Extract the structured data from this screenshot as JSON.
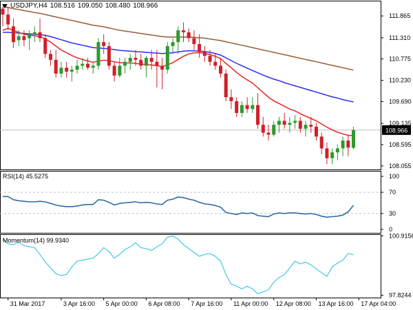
{
  "header": {
    "symbol": "USDJPY,H4",
    "ohlc": [
      "108.516",
      "109.050",
      "108.480",
      "108.966"
    ]
  },
  "price_badge": "108.966",
  "colors": {
    "up": "#2e9a2e",
    "down": "#d0202a",
    "ma_fast": "#e82424",
    "ma_mid": "#2a2aff",
    "ma_slow": "#9a5a34",
    "rsi": "#2f6aa0",
    "momentum": "#3fc8e8",
    "grid": "#bdbdbd",
    "badge": "#000000"
  },
  "rsi_panel": {
    "label": "RSI(14) 45.5275"
  },
  "momentum_panel": {
    "label": "Momentum(14) 99.9340"
  },
  "chart_data": [
    {
      "type": "candlestick",
      "name": "USDJPY,H4",
      "yaxis_ticks": [
        111.865,
        111.31,
        110.775,
        110.23,
        109.69,
        109.135,
        108.595,
        108.055
      ],
      "ylim": [
        108.0,
        112.2
      ],
      "current_price": 108.966,
      "xaxis_ticks": [
        "31 Mar 2017",
        "3 Apr 16:00",
        "5 Apr 00:00",
        "6 Apr 08:00",
        "7 Apr 16:00",
        "11 Apr 00:00",
        "12 Apr 08:00",
        "13 Apr 16:00",
        "17 Apr 04:00"
      ],
      "xaxis_tick_bars": [
        1,
        11,
        19,
        27,
        35,
        43,
        51,
        59,
        67
      ],
      "candles": [
        [
          112.05,
          112.1,
          111.6,
          111.9
        ],
        [
          111.9,
          112.1,
          111.5,
          111.65
        ],
        [
          111.6,
          111.8,
          111.05,
          111.2
        ],
        [
          111.25,
          111.5,
          111.1,
          111.35
        ],
        [
          111.35,
          111.5,
          111.1,
          111.25
        ],
        [
          111.3,
          111.5,
          111.0,
          111.4
        ],
        [
          111.4,
          111.6,
          111.2,
          111.45
        ],
        [
          111.45,
          111.8,
          111.2,
          111.3
        ],
        [
          111.3,
          111.4,
          110.8,
          110.9
        ],
        [
          110.9,
          111.0,
          110.6,
          110.75
        ],
        [
          110.75,
          111.0,
          110.3,
          110.4
        ],
        [
          110.4,
          110.7,
          110.3,
          110.55
        ],
        [
          110.55,
          110.7,
          110.3,
          110.45
        ],
        [
          110.45,
          110.6,
          110.2,
          110.5
        ],
        [
          110.5,
          110.75,
          110.4,
          110.6
        ],
        [
          110.6,
          110.8,
          110.5,
          110.65
        ],
        [
          110.65,
          110.8,
          110.5,
          110.55
        ],
        [
          110.55,
          110.7,
          110.4,
          110.6
        ],
        [
          110.6,
          111.3,
          110.5,
          111.2
        ],
        [
          111.2,
          111.4,
          110.9,
          111.1
        ],
        [
          111.1,
          111.2,
          110.5,
          110.6
        ],
        [
          110.6,
          110.7,
          110.2,
          110.35
        ],
        [
          110.35,
          110.8,
          110.3,
          110.6
        ],
        [
          110.6,
          110.8,
          110.4,
          110.7
        ],
        [
          110.7,
          110.9,
          110.5,
          110.8
        ],
        [
          110.8,
          111.0,
          110.6,
          110.75
        ],
        [
          110.75,
          110.9,
          110.5,
          110.6
        ],
        [
          110.6,
          110.85,
          110.3,
          110.8
        ],
        [
          110.8,
          111.0,
          110.5,
          110.7
        ],
        [
          110.7,
          111.0,
          110.05,
          110.6
        ],
        [
          110.6,
          110.8,
          110.0,
          110.5
        ],
        [
          110.5,
          111.2,
          110.4,
          111.1
        ],
        [
          111.1,
          111.3,
          110.9,
          111.2
        ],
        [
          111.2,
          111.6,
          110.9,
          111.5
        ],
        [
          111.5,
          111.7,
          111.2,
          111.45
        ],
        [
          111.45,
          111.55,
          111.2,
          111.3
        ],
        [
          111.3,
          111.5,
          111.0,
          111.15
        ],
        [
          111.15,
          111.4,
          110.8,
          110.95
        ],
        [
          110.95,
          111.1,
          110.7,
          110.85
        ],
        [
          110.85,
          111.0,
          110.6,
          110.7
        ],
        [
          110.7,
          110.9,
          110.5,
          110.6
        ],
        [
          110.6,
          110.8,
          110.3,
          110.4
        ],
        [
          110.4,
          110.5,
          109.7,
          109.8
        ],
        [
          109.8,
          110.0,
          109.5,
          109.7
        ],
        [
          109.7,
          109.8,
          109.3,
          109.4
        ],
        [
          109.4,
          109.7,
          109.3,
          109.6
        ],
        [
          109.6,
          109.8,
          109.4,
          109.5
        ],
        [
          109.5,
          109.8,
          109.4,
          109.6
        ],
        [
          109.6,
          109.9,
          109.0,
          109.1
        ],
        [
          109.1,
          109.3,
          108.8,
          108.9
        ],
        [
          108.9,
          109.1,
          108.7,
          108.85
        ],
        [
          108.85,
          109.2,
          108.8,
          109.1
        ],
        [
          109.1,
          109.3,
          108.9,
          109.2
        ],
        [
          109.2,
          109.4,
          109.0,
          109.1
        ],
        [
          109.1,
          109.3,
          108.9,
          109.15
        ],
        [
          109.15,
          109.35,
          109.0,
          109.2
        ],
        [
          109.2,
          109.3,
          108.9,
          109.0
        ],
        [
          109.0,
          109.2,
          108.8,
          109.1
        ],
        [
          109.1,
          109.3,
          108.9,
          109.05
        ],
        [
          109.05,
          109.15,
          108.7,
          108.8
        ],
        [
          108.8,
          108.9,
          108.35,
          108.5
        ],
        [
          108.5,
          108.65,
          108.1,
          108.25
        ],
        [
          108.25,
          108.5,
          108.1,
          108.4
        ],
        [
          108.4,
          108.6,
          108.2,
          108.5
        ],
        [
          108.5,
          108.8,
          108.3,
          108.7
        ],
        [
          108.7,
          108.85,
          108.3,
          108.52
        ],
        [
          108.516,
          109.05,
          108.48,
          108.966
        ]
      ],
      "ma_fast": [
        111.5,
        111.55,
        111.5,
        111.45,
        111.4,
        111.38,
        111.36,
        111.34,
        111.28,
        111.2,
        111.1,
        111.0,
        110.93,
        110.86,
        110.8,
        110.76,
        110.72,
        110.69,
        110.72,
        110.74,
        110.73,
        110.7,
        110.68,
        110.67,
        110.67,
        110.66,
        110.64,
        110.63,
        110.62,
        110.6,
        110.58,
        110.62,
        110.68,
        110.76,
        110.84,
        110.9,
        110.93,
        110.93,
        110.92,
        110.88,
        110.84,
        110.78,
        110.66,
        110.55,
        110.43,
        110.33,
        110.24,
        110.16,
        110.04,
        109.92,
        109.8,
        109.71,
        109.64,
        109.57,
        109.5,
        109.45,
        109.38,
        109.32,
        109.26,
        109.2,
        109.12,
        109.04,
        108.97,
        108.91,
        108.87,
        108.83,
        108.83
      ],
      "ma_mid": [
        111.45,
        111.45,
        111.44,
        111.43,
        111.42,
        111.41,
        111.4,
        111.39,
        111.37,
        111.34,
        111.3,
        111.26,
        111.22,
        111.18,
        111.15,
        111.12,
        111.09,
        111.06,
        111.05,
        111.04,
        111.03,
        111.01,
        110.99,
        110.98,
        110.97,
        110.96,
        110.95,
        110.94,
        110.93,
        110.92,
        110.91,
        110.92,
        110.93,
        110.95,
        110.97,
        110.98,
        110.98,
        110.97,
        110.96,
        110.94,
        110.91,
        110.87,
        110.8,
        110.73,
        110.66,
        110.6,
        110.54,
        110.48,
        110.42,
        110.36,
        110.31,
        110.26,
        110.22,
        110.17,
        110.13,
        110.09,
        110.05,
        110.01,
        109.97,
        109.93,
        109.89,
        109.85,
        109.81,
        109.78,
        109.74,
        109.71,
        109.68
      ],
      "ma_slow": [
        112.1,
        112.08,
        112.05,
        112.03,
        112.0,
        111.98,
        111.95,
        111.93,
        111.9,
        111.87,
        111.84,
        111.81,
        111.78,
        111.75,
        111.72,
        111.69,
        111.66,
        111.63,
        111.61,
        111.59,
        111.56,
        111.53,
        111.5,
        111.48,
        111.46,
        111.44,
        111.42,
        111.4,
        111.38,
        111.36,
        111.34,
        111.33,
        111.33,
        111.33,
        111.33,
        111.33,
        111.32,
        111.31,
        111.3,
        111.28,
        111.26,
        111.24,
        111.21,
        111.18,
        111.15,
        111.12,
        111.09,
        111.06,
        111.03,
        111.0,
        110.97,
        110.94,
        110.91,
        110.88,
        110.85,
        110.82,
        110.79,
        110.76,
        110.73,
        110.7,
        110.67,
        110.64,
        110.61,
        110.58,
        110.55,
        110.52,
        110.49
      ]
    },
    {
      "type": "line",
      "name": "RSI(14) 45.5275",
      "yaxis_ticks": [
        100,
        70,
        30,
        0
      ],
      "ylim": [
        0,
        100
      ],
      "levels": [
        70,
        30
      ],
      "values": [
        62,
        62,
        56,
        54,
        53,
        52,
        52,
        53,
        52,
        49,
        46,
        44,
        43,
        43,
        44,
        46,
        47,
        47,
        56,
        55,
        51,
        46,
        49,
        50,
        51,
        52,
        50,
        51,
        50,
        48,
        47,
        55,
        57,
        61,
        60,
        57,
        55,
        51,
        48,
        47,
        45,
        42,
        32,
        30,
        28,
        31,
        30,
        31,
        26,
        25,
        24,
        29,
        31,
        30,
        31,
        31,
        30,
        29,
        30,
        28,
        25,
        23,
        24,
        25,
        27,
        33,
        45.5
      ]
    },
    {
      "type": "line",
      "name": "Momentum(14) 99.9340",
      "yaxis_ticks": [
        100.9156,
        97.8244
      ],
      "ylim": [
        97.7,
        101.0
      ],
      "values": [
        100.75,
        100.5,
        100.45,
        100.6,
        100.4,
        100.35,
        100.3,
        99.95,
        99.55,
        99.25,
        98.95,
        98.85,
        98.9,
        99.3,
        99.6,
        99.65,
        99.7,
        99.75,
        100.0,
        100.3,
        100.1,
        99.75,
        99.95,
        100.2,
        100.35,
        100.55,
        100.3,
        100.25,
        100.15,
        100.35,
        100.5,
        100.85,
        100.9,
        100.75,
        100.45,
        100.25,
        100.05,
        99.85,
        99.95,
        100.0,
        99.85,
        99.6,
        98.9,
        98.4,
        98.3,
        98.15,
        98.3,
        98.15,
        97.9,
        98.0,
        98.1,
        98.5,
        98.75,
        98.9,
        99.25,
        99.6,
        99.45,
        99.55,
        99.4,
        99.2,
        99.0,
        98.8,
        99.3,
        99.5,
        99.65,
        100.0,
        99.934
      ]
    }
  ]
}
